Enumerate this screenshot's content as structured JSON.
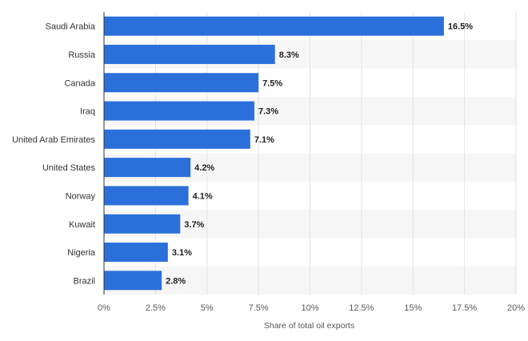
{
  "chart_data": {
    "type": "bar",
    "orientation": "horizontal",
    "categories": [
      "Saudi Arabia",
      "Russia",
      "Canada",
      "Iraq",
      "United Arab Emirates",
      "United States",
      "Norway",
      "Kuwait",
      "Nigeria",
      "Brazil"
    ],
    "values": [
      16.5,
      8.3,
      7.5,
      7.3,
      7.1,
      4.2,
      4.1,
      3.7,
      3.1,
      2.8
    ],
    "value_labels": [
      "16.5%",
      "8.3%",
      "7.5%",
      "7.3%",
      "7.1%",
      "4.2%",
      "4.1%",
      "3.7%",
      "3.1%",
      "2.8%"
    ],
    "title": "",
    "xlabel": "Share of total oil exports",
    "ylabel": "",
    "xlim": [
      0,
      20
    ],
    "x_ticks": [
      0,
      2.5,
      5,
      7.5,
      10,
      12.5,
      15,
      17.5,
      20
    ],
    "x_tick_labels": [
      "0%",
      "2.5%",
      "5%",
      "7.5%",
      "10%",
      "12.5%",
      "15%",
      "17.5%",
      "20%"
    ],
    "grid": true,
    "legend": "none",
    "bar_color": "#2b6fdb",
    "stripe_color": "#f6f6f6",
    "grid_color": "#e2e2e2"
  }
}
